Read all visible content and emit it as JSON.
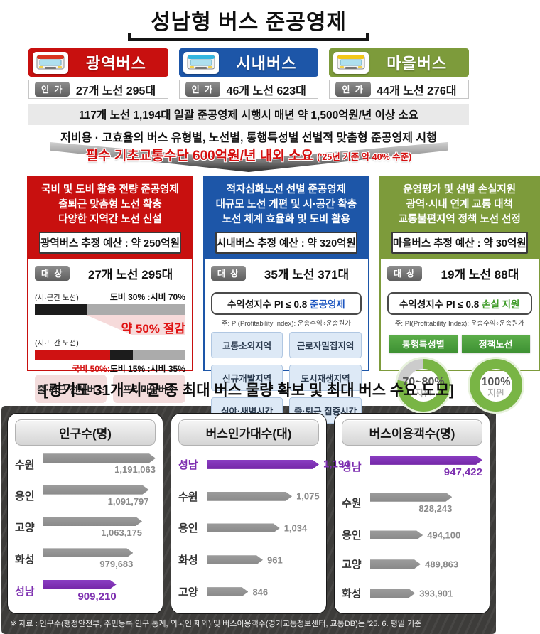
{
  "title": "성남형 버스 준공영제",
  "columns": [
    {
      "name": "광역버스",
      "color": "#c8100f",
      "bus_accent": "#d9341f",
      "license_badge": "인 가",
      "license_text": "27개 노선 295대"
    },
    {
      "name": "시내버스",
      "color": "#1d56a8",
      "bus_accent": "#35b6df",
      "license_badge": "인 가",
      "license_text": "46개 노선 623대"
    },
    {
      "name": "마을버스",
      "color": "#7d9b3b",
      "bus_accent": "#f2c718",
      "license_badge": "인 가",
      "license_text": "44개 노선 276대"
    }
  ],
  "summary_bar": "117개 노선 1,194대 일괄 준공영제 시행시 매년 약 1,500억원/년 이상 소요",
  "arrow": {
    "line1": "저비용 · 고효율의 버스 유형별, 노선별, 통행특성별 선별적 맞춤형 준공영제 시행",
    "line2": "필수 기초교통수단 600억원/년 내외 소요",
    "line2_note": "('25년 기준 약 40% 수준)"
  },
  "detail_boxes": {
    "gwangyeok": {
      "accent": "#c8100f",
      "header_lines": [
        "국비 및 도비 활용 전량 준공영제",
        "출퇴근 맞춤형 노선 확충",
        "다양한 지역간 노선 신설"
      ],
      "budget": "광역버스 추정 예산 : 약 250억원",
      "target_badge": "대 상",
      "target_text": "27개 노선 295대",
      "bar1_label": "(시·군간 노선)",
      "bar1_caption": "도비 30% :시비 70%",
      "bar1_segments": [
        {
          "color": "#1c1c1c",
          "pct": 35
        },
        {
          "color": "#ababab",
          "pct": 65
        }
      ],
      "saving_text": "약 50% 절감",
      "bar2_label": "(시·도간 노선)",
      "bar2_caption_red": "국비 50%:",
      "bar2_caption_rest": "도비 15% :시비 35%",
      "bar2_segments": [
        {
          "color": "#cf1212",
          "pct": 50
        },
        {
          "color": "#1c1c1c",
          "pct": 15
        },
        {
          "color": "#ababab",
          "pct": 35
        }
      ],
      "buttons": [
        "출·퇴근 전세버스",
        "프리미엄버스"
      ]
    },
    "sinae": {
      "accent": "#1d56a8",
      "header_lines": [
        "적자심화노선 선별 준공영제",
        "대규모 노선 개편 및 시·공간 확충",
        "노선 체계 효율화 및 도비 활용"
      ],
      "budget": "시내버스 추정 예산 : 약 320억원",
      "target_badge": "대 상",
      "target_text": "35개 노선 371대",
      "pi_text": "수익성지수 PI ≤ 0.8 ",
      "pi_highlight": "준공영제",
      "pi_note": "주: PI(Profitability Index): 운송수익÷운송원가",
      "buttons": [
        "교통소외지역",
        "근로자밀집지역",
        "신규개발지역",
        "도시재생지역",
        "심야·새벽시간",
        "출·퇴근 집중시간"
      ]
    },
    "maeul": {
      "accent": "#7d9b3b",
      "header_lines": [
        "운영평가 및 선별 손실지원",
        "광역·시내 연계 교통 대책",
        "교통불편지역 정책 노선 선정"
      ],
      "budget": "마을버스 추정 예산 : 약 30억원",
      "target_badge": "대 상",
      "target_text": "19개 노선 88대",
      "pi_text": "수익성지수 PI ≤ 0.8 ",
      "pi_highlight": "손실 지원",
      "pi_note": "주: PI(Profitability Index): 운송수익÷운송원가",
      "donuts": [
        {
          "ribbon": "통행특성별",
          "pct": 78,
          "label": "70~80%",
          "sub": "지원"
        },
        {
          "ribbon": "정책노선",
          "pct": 100,
          "label": "100%",
          "sub": "지원"
        }
      ],
      "donut_color": "#79b545",
      "donut_rest_color": "#cccccc"
    }
  },
  "bottom": {
    "section_title": "[경기도 31개 시·군 중 최대 버스 물량 확보 및 최대 버스 수요 도모]",
    "footnote": "※ 자료 : 인구수(행정안전부, 주민등록 인구 통계, 외국인 제외) 및 버스이용객수(경기교통정보센터, 교통DB)는 '25. 6. 평일 기준"
  },
  "chart_colors": {
    "bar": "#8f8f8f",
    "highlight": "#7d2fb0"
  },
  "chart_data": [
    {
      "type": "bar",
      "title": "인구수(명)",
      "categories": [
        "수원",
        "용인",
        "고양",
        "화성",
        "성남"
      ],
      "values": [
        1191063,
        1091797,
        1063175,
        979683,
        909210
      ],
      "value_labels": [
        "1,191,063",
        "1,091,797",
        "1,063,175",
        "979,683",
        "909,210"
      ],
      "highlight_index": 4,
      "width_pcts": [
        100,
        94,
        88,
        80,
        65
      ],
      "value_pos": [
        "below",
        "below",
        "below",
        "below",
        "below"
      ],
      "xlabel": "",
      "ylabel": "",
      "legend": "none",
      "grid": false
    },
    {
      "type": "bar",
      "title": "버스인가대수(대)",
      "categories": [
        "성남",
        "수원",
        "용인",
        "화성",
        "고양"
      ],
      "values": [
        1194,
        1075,
        1034,
        961,
        846
      ],
      "value_labels": [
        "1,194",
        "1,075",
        "1,034",
        "961",
        "846"
      ],
      "highlight_index": 0,
      "width_pcts": [
        100,
        76,
        65,
        50,
        37
      ],
      "value_pos": [
        "right",
        "right",
        "right",
        "right",
        "right"
      ],
      "xlabel": "",
      "ylabel": "",
      "legend": "none",
      "grid": false
    },
    {
      "type": "bar",
      "title": "버스이용객수(명)",
      "categories": [
        "성남",
        "수원",
        "용인",
        "고양",
        "화성"
      ],
      "values": [
        947422,
        828243,
        494100,
        489863,
        393901
      ],
      "value_labels": [
        "947,422",
        "828,243",
        "494,100",
        "489,863",
        "393,901"
      ],
      "highlight_index": 0,
      "width_pcts": [
        100,
        73,
        47,
        45,
        40
      ],
      "value_pos": [
        "below",
        "below",
        "right",
        "right",
        "right"
      ],
      "xlabel": "",
      "ylabel": "",
      "legend": "none",
      "grid": false
    }
  ]
}
